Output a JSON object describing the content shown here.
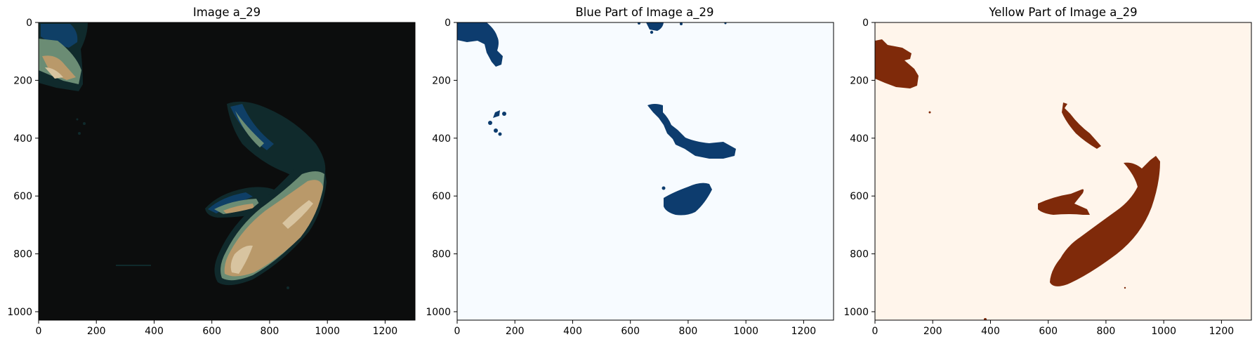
{
  "figure": {
    "panels": [
      {
        "title": "Image a_29",
        "x_ticks": [
          "0",
          "200",
          "400",
          "600",
          "800",
          "1000",
          "1200"
        ],
        "y_ticks": [
          "0",
          "200",
          "400",
          "600",
          "800",
          "1000"
        ],
        "colormap": "quantized natural color",
        "colors": {
          "background": "#0c0d0d",
          "dark_teal": "#102a2c",
          "blue": "#0f3f66",
          "green_gray": "#6b8c74",
          "tan": "#b9996a",
          "light_tan": "#d8c4a0"
        }
      },
      {
        "title": "Blue Part of Image a_29",
        "x_ticks": [
          "0",
          "200",
          "400",
          "600",
          "800",
          "1000",
          "1200"
        ],
        "y_ticks": [
          "0",
          "200",
          "400",
          "600",
          "800",
          "1000"
        ],
        "colormap": "Blues",
        "colors": {
          "background": "#f7fbff",
          "mask": "#0d3c6e"
        }
      },
      {
        "title": "Yellow Part of Image a_29",
        "x_ticks": [
          "0",
          "200",
          "400",
          "600",
          "800",
          "1000",
          "1200"
        ],
        "y_ticks": [
          "0",
          "200",
          "400",
          "600",
          "800",
          "1000"
        ],
        "colormap": "Oranges",
        "colors": {
          "background": "#fff5eb",
          "mask": "#7f2a0a"
        }
      }
    ]
  }
}
